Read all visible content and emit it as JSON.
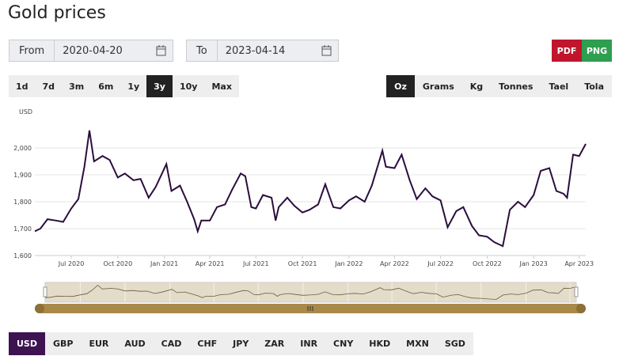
{
  "title": "Gold prices",
  "from": {
    "label": "From",
    "value": "2020-04-20"
  },
  "to": {
    "label": "To",
    "value": "2023-04-14"
  },
  "export": [
    "PDF",
    "PNG"
  ],
  "ranges": [
    "1d",
    "7d",
    "3m",
    "6m",
    "1y",
    "3y",
    "10y",
    "Max"
  ],
  "units": [
    "Oz",
    "Grams",
    "Kg",
    "Tonnes",
    "Tael",
    "Tola"
  ],
  "currencies": [
    "USD",
    "GBP",
    "EUR",
    "AUD",
    "CAD",
    "CHF",
    "JPY",
    "ZAR",
    "INR",
    "CNY",
    "HKD",
    "MXN",
    "SGD"
  ],
  "chart_data": {
    "type": "line",
    "y_label": "USD",
    "color": "#2b0d3d",
    "x": [
      "2020-04-20",
      "2020-05-01",
      "2020-05-15",
      "2020-06-01",
      "2020-06-15",
      "2020-07-01",
      "2020-07-15",
      "2020-07-27",
      "2020-08-06",
      "2020-08-15",
      "2020-09-01",
      "2020-09-15",
      "2020-10-01",
      "2020-10-15",
      "2020-11-01",
      "2020-11-15",
      "2020-12-01",
      "2020-12-15",
      "2021-01-05",
      "2021-01-15",
      "2021-02-01",
      "2021-02-15",
      "2021-03-01",
      "2021-03-08",
      "2021-03-15",
      "2021-04-01",
      "2021-04-15",
      "2021-05-01",
      "2021-05-15",
      "2021-06-01",
      "2021-06-10",
      "2021-06-22",
      "2021-07-01",
      "2021-07-15",
      "2021-08-01",
      "2021-08-09",
      "2021-08-15",
      "2021-09-01",
      "2021-09-15",
      "2021-10-01",
      "2021-10-15",
      "2021-11-01",
      "2021-11-15",
      "2021-12-01",
      "2021-12-15",
      "2022-01-01",
      "2022-01-15",
      "2022-02-01",
      "2022-02-15",
      "2022-03-08",
      "2022-03-15",
      "2022-04-01",
      "2022-04-15",
      "2022-05-01",
      "2022-05-15",
      "2022-06-01",
      "2022-06-15",
      "2022-07-01",
      "2022-07-15",
      "2022-08-01",
      "2022-08-15",
      "2022-09-01",
      "2022-09-15",
      "2022-10-01",
      "2022-10-15",
      "2022-11-01",
      "2022-11-15",
      "2022-12-01",
      "2022-12-15",
      "2023-01-01",
      "2023-01-15",
      "2023-02-01",
      "2023-02-15",
      "2023-03-01",
      "2023-03-08",
      "2023-03-20",
      "2023-04-01",
      "2023-04-14"
    ],
    "values": [
      1690,
      1700,
      1735,
      1730,
      1725,
      1775,
      1810,
      1930,
      2065,
      1950,
      1970,
      1955,
      1890,
      1905,
      1880,
      1885,
      1815,
      1855,
      1940,
      1840,
      1860,
      1800,
      1735,
      1690,
      1730,
      1730,
      1780,
      1790,
      1845,
      1905,
      1895,
      1780,
      1775,
      1825,
      1815,
      1730,
      1780,
      1815,
      1785,
      1760,
      1770,
      1790,
      1865,
      1780,
      1775,
      1805,
      1820,
      1800,
      1860,
      1990,
      1930,
      1925,
      1975,
      1880,
      1810,
      1850,
      1820,
      1805,
      1705,
      1765,
      1780,
      1710,
      1675,
      1670,
      1650,
      1635,
      1770,
      1800,
      1780,
      1825,
      1915,
      1925,
      1840,
      1830,
      1815,
      1975,
      1970,
      2015
    ],
    "xlim": [
      "2020-04-20",
      "2023-04-14"
    ],
    "xticks": [
      {
        "value": "2020-07-01",
        "label": "Jul 2020"
      },
      {
        "value": "2020-10-01",
        "label": "Oct 2020"
      },
      {
        "value": "2021-01-01",
        "label": "Jan 2021"
      },
      {
        "value": "2021-04-01",
        "label": "Apr 2021"
      },
      {
        "value": "2021-07-01",
        "label": "Jul 2021"
      },
      {
        "value": "2021-10-01",
        "label": "Oct 2021"
      },
      {
        "value": "2022-01-01",
        "label": "Jan 2022"
      },
      {
        "value": "2022-04-01",
        "label": "Apr 2022"
      },
      {
        "value": "2022-07-01",
        "label": "Jul 2022"
      },
      {
        "value": "2022-10-01",
        "label": "Oct 2022"
      },
      {
        "value": "2023-01-01",
        "label": "Jan 2023"
      },
      {
        "value": "2023-04-01",
        "label": "Apr 2023"
      }
    ],
    "ylim": [
      1600,
      2100
    ],
    "yticks": [
      {
        "value": 1600,
        "label": "1,600"
      },
      {
        "value": 1700,
        "label": "1,700"
      },
      {
        "value": 1800,
        "label": "1,800"
      },
      {
        "value": 1900,
        "label": "1,900"
      },
      {
        "value": 2000,
        "label": "2,000"
      }
    ],
    "grid": true
  }
}
